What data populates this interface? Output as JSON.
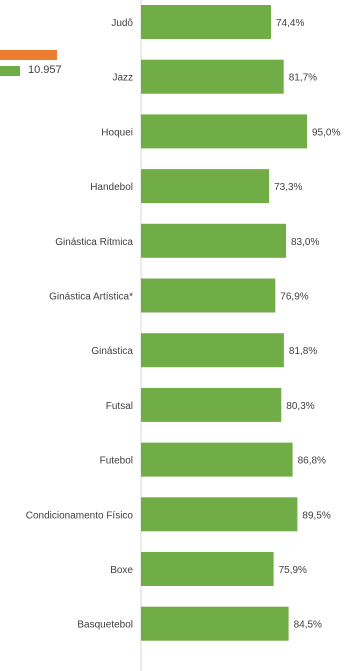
{
  "legend": {
    "items": [
      {
        "label": "",
        "color": "#ED7D31"
      },
      {
        "label": "10.957",
        "color": "#70AD47"
      }
    ]
  },
  "chart_data": {
    "type": "bar",
    "orientation": "horizontal",
    "categories": [
      "Judô",
      "Jazz",
      "Hoquei",
      "Handebol",
      "Ginástica Ritmica",
      "Ginástica Artística*",
      "Ginástica",
      "Futsal",
      "Futebol",
      "Condicionamento Físico",
      "Boxe",
      "Basquetebol"
    ],
    "values": [
      74.4,
      81.7,
      95.0,
      73.3,
      83.0,
      76.9,
      81.8,
      80.3,
      86.8,
      89.5,
      75.9,
      84.5
    ],
    "data_labels": [
      "74,4%",
      "81,7%",
      "95,0%",
      "73,3%",
      "83,0%",
      "76,9%",
      "81,8%",
      "80,3%",
      "86,8%",
      "89,5%",
      "75,9%",
      "84,5%"
    ],
    "title": "",
    "xlabel": "",
    "ylabel": "",
    "bar_color": "#70AD47",
    "axis_color": "#D9D9D9",
    "label_color": "#404040",
    "grid": false
  }
}
